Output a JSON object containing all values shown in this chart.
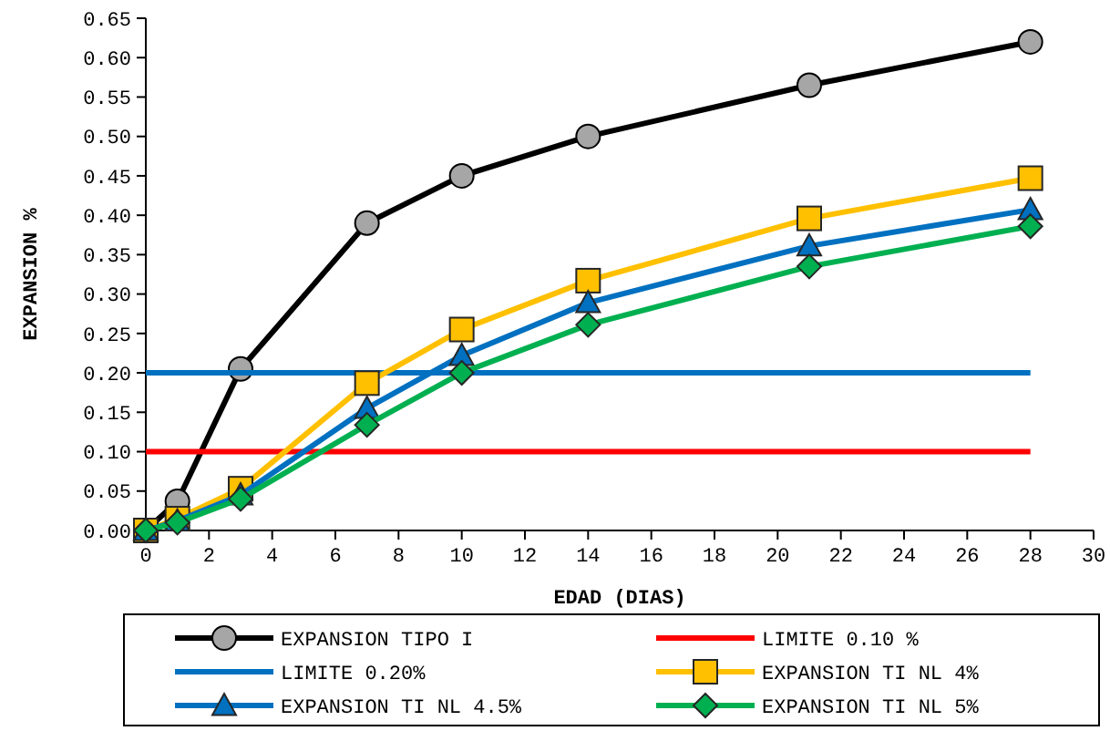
{
  "chart_data": {
    "type": "line",
    "xlabel": "EDAD (DIAS)",
    "ylabel": "EXPANSION %",
    "x": [
      0,
      1,
      3,
      7,
      10,
      14,
      21,
      28
    ],
    "xlim": [
      0,
      30
    ],
    "xticks": [
      0,
      2,
      4,
      6,
      8,
      10,
      12,
      14,
      16,
      18,
      20,
      22,
      24,
      26,
      28,
      30
    ],
    "ylim": [
      0,
      0.65
    ],
    "yticks": [
      {
        "value": 0,
        "label": "0.00"
      },
      {
        "value": 0.05,
        "label": "0.05"
      },
      {
        "value": 0.1,
        "label": "0.10"
      },
      {
        "value": 0.15,
        "label": "0.15"
      },
      {
        "value": 0.2,
        "label": "0.20"
      },
      {
        "value": 0.25,
        "label": "0.25"
      },
      {
        "value": 0.3,
        "label": "0.30"
      },
      {
        "value": 0.35,
        "label": "0.35"
      },
      {
        "value": 0.4,
        "label": "0.40"
      },
      {
        "value": 0.45,
        "label": "0.45"
      },
      {
        "value": 0.5,
        "label": "0.50"
      },
      {
        "value": 0.55,
        "label": "0.55"
      },
      {
        "value": 0.6,
        "label": "0.60"
      },
      {
        "value": 0.65,
        "label": "0.65"
      }
    ],
    "grid": false,
    "legend": "bottom",
    "line_style": "solid",
    "series": [
      {
        "name": "EXPANSION TIPO I",
        "color": "#000000",
        "marker": "circle",
        "values": [
          0,
          0.037,
          0.205,
          0.39,
          0.45,
          0.5,
          0.565,
          0.62
        ]
      },
      {
        "name": "LIMITE 0.10 %",
        "color": "#ff0000",
        "marker": "none",
        "values": [
          0.1,
          0.1,
          0.1,
          0.1,
          0.1,
          0.1,
          0.1,
          0.1
        ]
      },
      {
        "name": "LIMITE 0.20%",
        "color": "#0070c0",
        "marker": "none",
        "values": [
          0.2,
          0.2,
          0.2,
          0.2,
          0.2,
          0.2,
          0.2,
          0.2
        ]
      },
      {
        "name": "EXPANSION TI NL 4%",
        "color": "#ffc000",
        "marker": "square",
        "values": [
          0,
          0.015,
          0.053,
          0.187,
          0.255,
          0.317,
          0.396,
          0.447
        ]
      },
      {
        "name": "EXPANSION TI NL 4.5%",
        "color": "#0070c0",
        "marker": "triangle",
        "values": [
          0,
          0.012,
          0.045,
          0.155,
          0.222,
          0.289,
          0.361,
          0.407
        ]
      },
      {
        "name": "EXPANSION TI NL 5%",
        "color": "#00b050",
        "marker": "diamond",
        "values": [
          0,
          0.01,
          0.04,
          0.134,
          0.2,
          0.261,
          0.335,
          0.386
        ]
      }
    ]
  }
}
